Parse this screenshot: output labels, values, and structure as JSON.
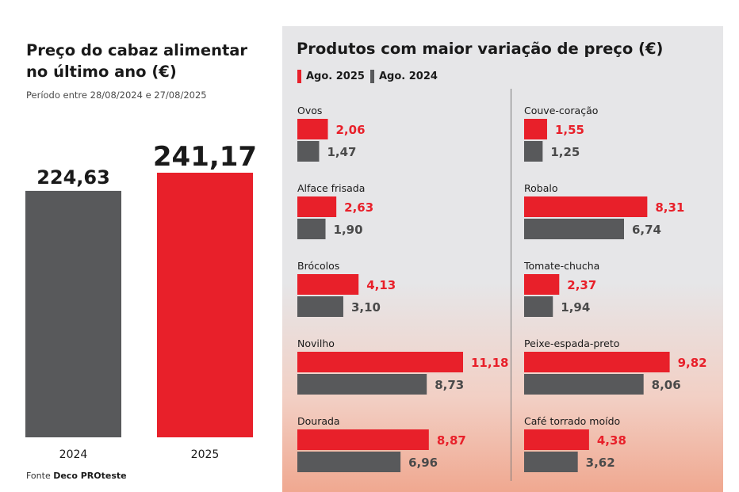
{
  "left": {
    "title": "Preço do cabaz alimentar no último ano (€)",
    "subtitle": "Período entre 28/08/2024 e 27/08/2025",
    "source_prefix": "Fonte ",
    "source_name": "Deco PROteste"
  },
  "right": {
    "title": "Produtos com maior variação de preço (€)",
    "legend": [
      {
        "label": "Ago. 2025",
        "color": "#e8202a"
      },
      {
        "label": "Ago. 2024",
        "color": "#58595b"
      }
    ]
  },
  "colors": {
    "red": "#e8202a",
    "gray": "#58595b",
    "red_text": "#e8202a",
    "gray_text": "#4a4a4a"
  },
  "chart_data": [
    {
      "type": "bar",
      "categories": [
        "2024",
        "2025"
      ],
      "values": [
        224.63,
        241.17
      ],
      "value_labels": [
        "224,63",
        "241,17"
      ],
      "colors": [
        "#58595b",
        "#e8202a"
      ]
    },
    {
      "type": "bar",
      "orientation": "horizontal",
      "categories": [
        "Ovos",
        "Alface frisada",
        "Brócolos",
        "Novilho",
        "Dourada",
        "Couve-coração",
        "Robalo",
        "Tomate-chucha",
        "Peixe-espada-preto",
        "Café torrado moído"
      ],
      "series": [
        {
          "name": "Ago. 2025",
          "values": [
            2.06,
            2.63,
            4.13,
            11.18,
            8.87,
            1.55,
            8.31,
            2.37,
            9.82,
            4.38
          ],
          "labels": [
            "2,06",
            "2,63",
            "4,13",
            "11,18",
            "8,87",
            "1,55",
            "8,31",
            "2,37",
            "9,82",
            "4,38"
          ]
        },
        {
          "name": "Ago. 2024",
          "values": [
            1.47,
            1.9,
            3.1,
            8.73,
            6.96,
            1.25,
            6.74,
            1.94,
            8.06,
            3.62
          ],
          "labels": [
            "1,47",
            "1,90",
            "3,10",
            "8,73",
            "6,96",
            "1,25",
            "6,74",
            "1,94",
            "8,06",
            "3,62"
          ]
        }
      ]
    }
  ]
}
